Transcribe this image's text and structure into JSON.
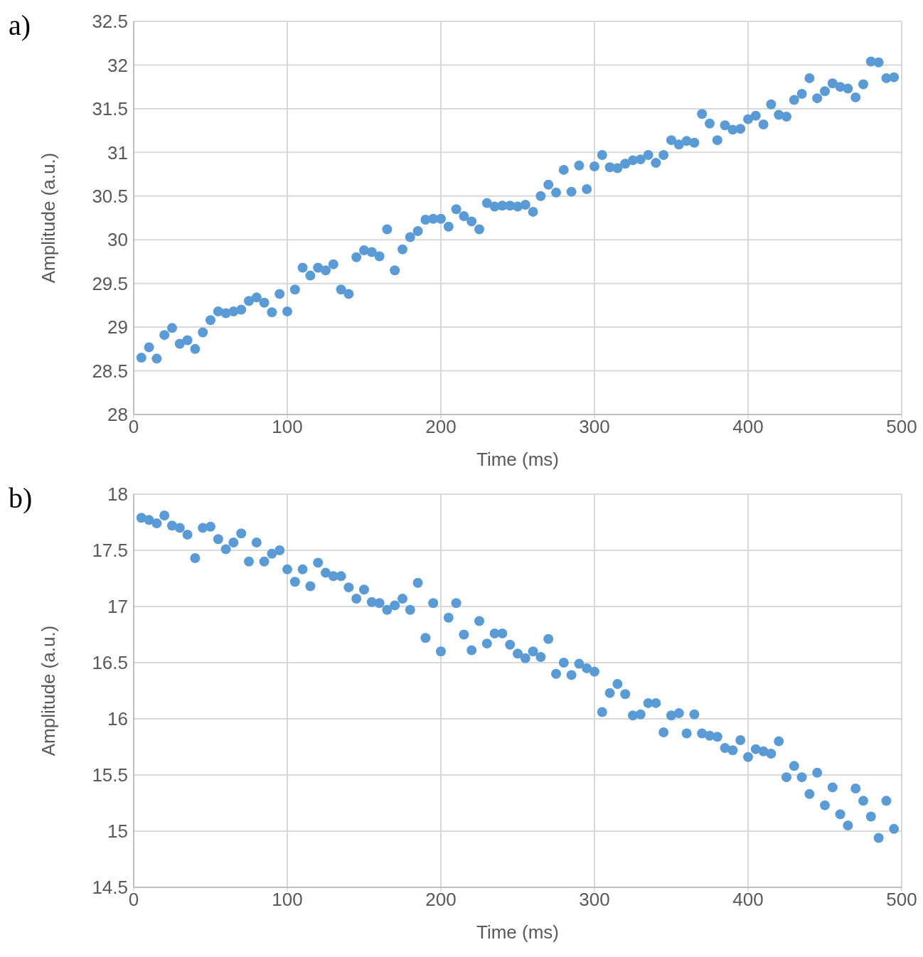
{
  "chart_data": [
    {
      "type": "scatter",
      "annotations": [
        "a)"
      ],
      "xlabel": "Time (ms)",
      "ylabel": "Amplitude (a.u.)",
      "xlim": [
        0,
        500
      ],
      "xticks": [
        0,
        100,
        200,
        300,
        400,
        500
      ],
      "ylim": [
        28,
        32.5
      ],
      "yticks": [
        28,
        28.5,
        29,
        29.5,
        30,
        30.5,
        31,
        31.5,
        32,
        32.5
      ],
      "grid": true,
      "marker": "circle",
      "x": [
        5,
        10,
        15,
        20,
        25,
        30,
        35,
        40,
        45,
        50,
        55,
        60,
        65,
        70,
        75,
        80,
        85,
        90,
        95,
        100,
        105,
        110,
        115,
        120,
        125,
        130,
        135,
        140,
        145,
        150,
        155,
        160,
        165,
        170,
        175,
        180,
        185,
        190,
        195,
        200,
        205,
        210,
        215,
        220,
        225,
        230,
        235,
        240,
        245,
        250,
        255,
        260,
        265,
        270,
        275,
        280,
        285,
        290,
        295,
        300,
        305,
        310,
        315,
        320,
        325,
        330,
        335,
        340,
        345,
        350,
        355,
        360,
        365,
        370,
        375,
        380,
        385,
        390,
        395,
        400,
        405,
        410,
        415,
        420,
        425,
        430,
        435,
        440,
        445,
        450,
        455,
        460,
        465,
        470,
        475,
        480,
        485,
        490,
        495
      ],
      "series": [
        {
          "color": "#5b9bd5",
          "values": [
            28.65,
            28.77,
            28.64,
            28.91,
            28.99,
            28.81,
            28.85,
            28.75,
            28.94,
            29.08,
            29.18,
            29.16,
            29.18,
            29.2,
            29.3,
            29.34,
            29.28,
            29.17,
            29.38,
            29.18,
            29.43,
            29.68,
            29.59,
            29.68,
            29.65,
            29.72,
            29.43,
            29.38,
            29.8,
            29.88,
            29.86,
            29.81,
            30.12,
            29.65,
            29.89,
            30.03,
            30.1,
            30.23,
            30.24,
            30.24,
            30.15,
            30.35,
            30.27,
            30.21,
            30.12,
            30.42,
            30.38,
            30.39,
            30.39,
            30.38,
            30.4,
            30.32,
            30.5,
            30.63,
            30.54,
            30.8,
            30.55,
            30.85,
            30.58,
            30.84,
            30.97,
            30.83,
            30.82,
            30.87,
            30.91,
            30.92,
            30.97,
            30.88,
            30.97,
            31.14,
            31.09,
            31.13,
            31.11,
            31.44,
            31.33,
            31.14,
            31.31,
            31.26,
            31.27,
            31.38,
            31.42,
            31.32,
            31.55,
            31.43,
            31.41,
            31.6,
            31.67,
            31.85,
            31.62,
            31.7,
            31.79,
            31.75,
            31.73,
            31.63,
            31.78,
            32.04,
            32.03,
            31.85,
            31.86
          ]
        }
      ]
    },
    {
      "type": "scatter",
      "annotations": [
        "b)"
      ],
      "xlabel": "Time (ms)",
      "ylabel": "Amplitude (a.u.)",
      "xlim": [
        0,
        500
      ],
      "xticks": [
        0,
        100,
        200,
        300,
        400,
        500
      ],
      "ylim": [
        14.5,
        18
      ],
      "yticks": [
        14.5,
        15,
        15.5,
        16,
        16.5,
        17,
        17.5,
        18
      ],
      "grid": true,
      "marker": "circle",
      "x": [
        5,
        10,
        15,
        20,
        25,
        30,
        35,
        40,
        45,
        50,
        55,
        60,
        65,
        70,
        75,
        80,
        85,
        90,
        95,
        100,
        105,
        110,
        115,
        120,
        125,
        130,
        135,
        140,
        145,
        150,
        155,
        160,
        165,
        170,
        175,
        180,
        185,
        190,
        195,
        200,
        205,
        210,
        215,
        220,
        225,
        230,
        235,
        240,
        245,
        250,
        255,
        260,
        265,
        270,
        275,
        280,
        285,
        290,
        295,
        300,
        305,
        310,
        315,
        320,
        325,
        330,
        335,
        340,
        345,
        350,
        355,
        360,
        365,
        370,
        375,
        380,
        385,
        390,
        395,
        400,
        405,
        410,
        415,
        420,
        425,
        430,
        435,
        440,
        445,
        450,
        455,
        460,
        465,
        470,
        475,
        480,
        485,
        490,
        495
      ],
      "series": [
        {
          "color": "#5b9bd5",
          "values": [
            17.79,
            17.77,
            17.74,
            17.81,
            17.72,
            17.7,
            17.64,
            17.43,
            17.7,
            17.71,
            17.6,
            17.51,
            17.57,
            17.65,
            17.4,
            17.57,
            17.4,
            17.47,
            17.5,
            17.33,
            17.22,
            17.33,
            17.18,
            17.39,
            17.3,
            17.27,
            17.27,
            17.17,
            17.07,
            17.15,
            17.04,
            17.03,
            16.97,
            17.01,
            17.07,
            16.97,
            17.21,
            16.72,
            17.03,
            16.6,
            16.9,
            17.03,
            16.75,
            16.61,
            16.87,
            16.67,
            16.76,
            16.76,
            16.66,
            16.58,
            16.54,
            16.6,
            16.55,
            16.71,
            16.4,
            16.5,
            16.39,
            16.49,
            16.45,
            16.42,
            16.06,
            16.23,
            16.31,
            16.22,
            16.03,
            16.04,
            16.14,
            16.14,
            15.88,
            16.03,
            16.05,
            15.87,
            16.04,
            15.87,
            15.85,
            15.84,
            15.74,
            15.72,
            15.81,
            15.66,
            15.73,
            15.71,
            15.69,
            15.8,
            15.48,
            15.58,
            15.48,
            15.33,
            15.52,
            15.23,
            15.39,
            15.15,
            15.05,
            15.38,
            15.27,
            15.13,
            14.94,
            15.27,
            15.02
          ]
        }
      ]
    }
  ]
}
